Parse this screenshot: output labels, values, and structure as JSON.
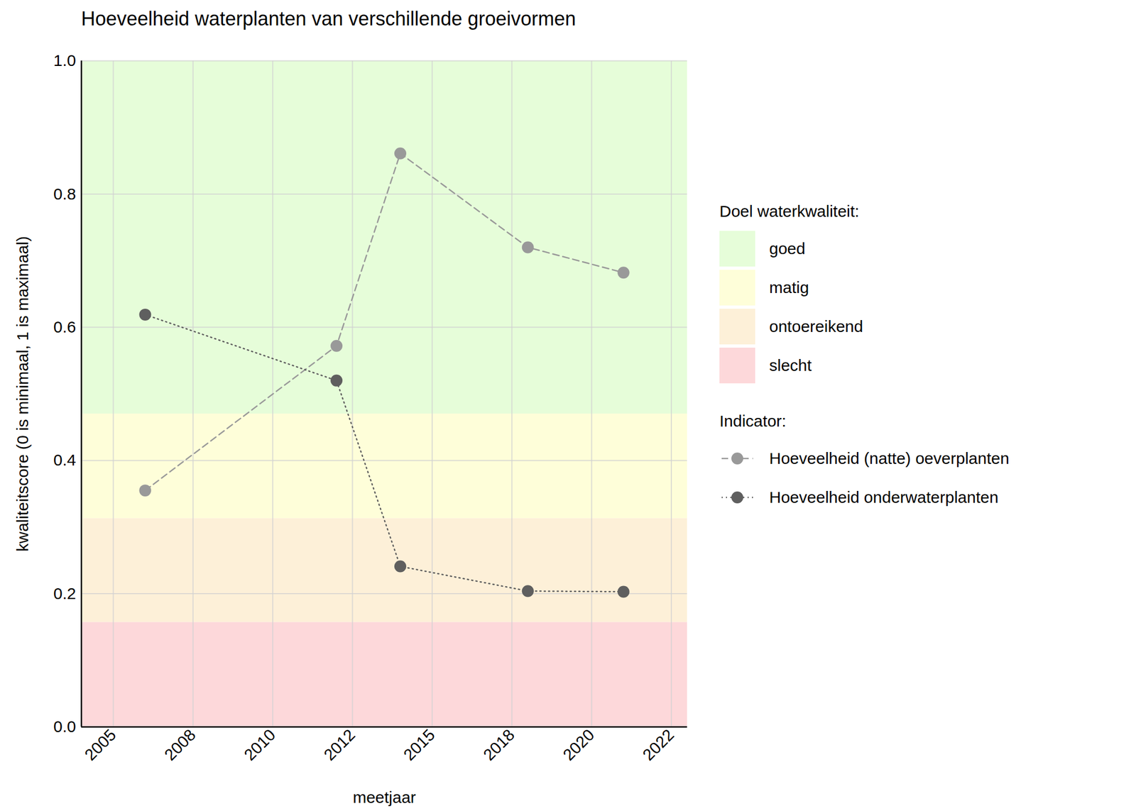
{
  "chart_data": {
    "type": "line",
    "title": "Hoeveelheid waterplanten van verschillende groeivormen",
    "x_label": "meetjaar",
    "y_label": "kwaliteitscore (0 is minimaal, 1 is maximaal)",
    "x": [
      2006,
      2012,
      2014,
      2018,
      2021
    ],
    "series": [
      {
        "name": "Hoeveelheid (natte) oeverplanten",
        "color": "#999999",
        "line_style": "dashed",
        "marker": "circle",
        "values": [
          0.355,
          0.572,
          0.861,
          0.72,
          0.682
        ]
      },
      {
        "name": "Hoeveelheid onderwaterplanten",
        "color": "#5f5f5f",
        "line_style": "dotted",
        "marker": "circle",
        "values": [
          0.619,
          0.52,
          0.241,
          0.204,
          0.203
        ]
      }
    ],
    "xlim": [
      2004,
      2023
    ],
    "xticks": [
      2005,
      {
        "value": 2007.5,
        "label": "2008"
      },
      2010,
      {
        "value": 2012.5,
        "label": "2012"
      },
      2015,
      {
        "value": 2017.5,
        "label": "2018"
      },
      2020,
      {
        "value": 2022.5,
        "label": "2022"
      }
    ],
    "ylim": [
      0,
      1
    ],
    "yticks": [
      {
        "value": 0,
        "label": "0.0"
      },
      0.2,
      0.4,
      0.6,
      0.8,
      {
        "value": 1,
        "label": "1.0"
      }
    ],
    "grid": true,
    "legend": "right",
    "band_legend_title": "Doel waterkwaliteit:",
    "series_legend_title": "Indicator:",
    "bands": [
      {
        "name": "goed",
        "from": 0.47,
        "to": 1,
        "color": "#e6fdd9"
      },
      {
        "name": "matig",
        "from": 0.313,
        "to": 0.47,
        "color": "#fefed9"
      },
      {
        "name": "ontoereikend",
        "from": 0.157,
        "to": 0.313,
        "color": "#fdf0d8"
      },
      {
        "name": "slecht",
        "from": 0,
        "to": 0.157,
        "color": "#fdd8da"
      }
    ]
  }
}
